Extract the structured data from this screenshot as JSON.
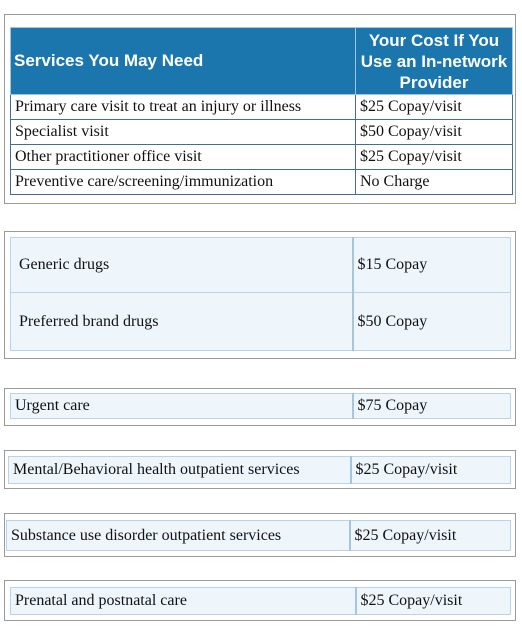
{
  "tables": [
    {
      "header": [
        "Services You May Need",
        "Your Cost If You Use an In-network Provider"
      ],
      "rows": [
        [
          "Primary care visit to treat an injury or illness",
          "$25 Copay/visit"
        ],
        [
          "Specialist visit",
          "$50 Copay/visit"
        ],
        [
          "Other practitioner office visit",
          "$25 Copay/visit"
        ],
        [
          "Preventive care/screening/immunization",
          "No Charge"
        ]
      ]
    },
    {
      "rows": [
        [
          "Generic drugs",
          "$15 Copay"
        ],
        [
          "Preferred brand drugs",
          "$50 Copay"
        ]
      ]
    },
    {
      "rows": [
        [
          "Urgent care",
          "$75 Copay"
        ]
      ]
    },
    {
      "rows": [
        [
          "Mental/Behavioral health outpatient services",
          "$25 Copay/visit"
        ]
      ]
    },
    {
      "rows": [
        [
          "Substance use disorder outpatient services",
          "$25 Copay/visit"
        ]
      ]
    },
    {
      "rows": [
        [
          "Prenatal and postnatal care",
          "$25 Copay/visit"
        ]
      ]
    }
  ]
}
